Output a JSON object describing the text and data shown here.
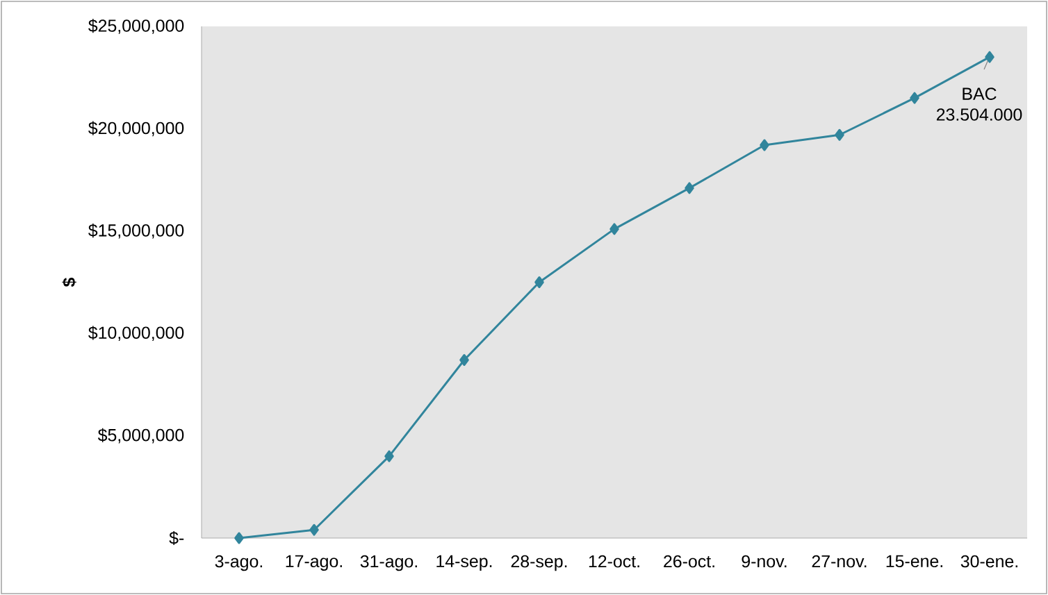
{
  "chart_data": {
    "type": "line",
    "ylabel": "$",
    "categories": [
      "3-ago.",
      "17-ago.",
      "31-ago.",
      "14-sep.",
      "28-sep.",
      "12-oct.",
      "26-oct.",
      "9-nov.",
      "27-nov.",
      "15-ene.",
      "30-ene."
    ],
    "series": [
      {
        "color": "#31859c",
        "values": [
          0,
          400000,
          4000000,
          8700000,
          12500000,
          15100000,
          17100000,
          19200000,
          19700000,
          21500000,
          23504000
        ]
      }
    ],
    "ylim": [
      0,
      25000000
    ],
    "yticks": [
      {
        "value": 0,
        "label": "$-"
      },
      {
        "value": 5000000,
        "label": "$5,000,000"
      },
      {
        "value": 10000000,
        "label": "$10,000,000"
      },
      {
        "value": 15000000,
        "label": "$15,000,000"
      },
      {
        "value": 20000000,
        "label": "$20,000,000"
      },
      {
        "value": 25000000,
        "label": "$25,000,000"
      }
    ],
    "annotations": [
      {
        "text": "BAC 23.504.000",
        "x": "30-ene.",
        "y": 23504000
      }
    ],
    "marker": "diamond",
    "line_style": "solid"
  }
}
